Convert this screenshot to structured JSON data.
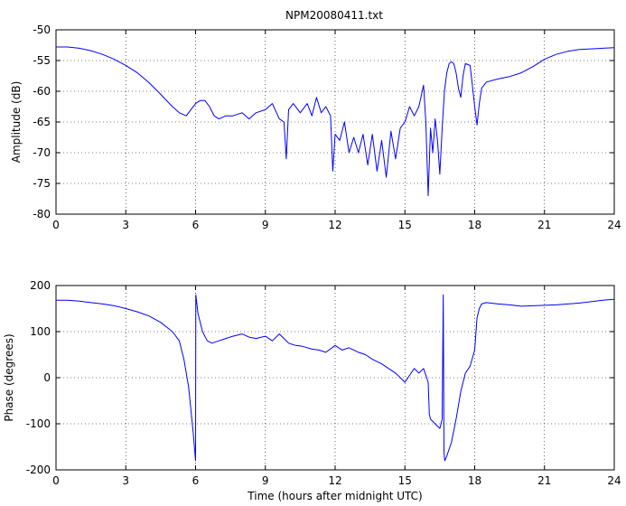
{
  "title": "NPM20080411.txt",
  "chart_data": [
    {
      "type": "line",
      "name": "amplitude",
      "ylabel": "Amplitude (dB)",
      "xlabel": "",
      "xlim": [
        0,
        24
      ],
      "ylim": [
        -80,
        -50
      ],
      "xticks": [
        0,
        3,
        6,
        9,
        12,
        15,
        18,
        21,
        24
      ],
      "yticks": [
        -50,
        -55,
        -60,
        -65,
        -70,
        -75,
        -80
      ],
      "grid": true,
      "color": "#0000ff",
      "x": [
        0,
        0.5,
        1,
        1.5,
        2,
        2.5,
        3,
        3.5,
        4,
        4.5,
        5,
        5.3,
        5.6,
        5.8,
        6.0,
        6.2,
        6.4,
        6.6,
        6.8,
        7.0,
        7.3,
        7.6,
        8.0,
        8.3,
        8.6,
        9.0,
        9.3,
        9.6,
        9.8,
        9.9,
        10.0,
        10.2,
        10.5,
        10.8,
        11.0,
        11.2,
        11.4,
        11.6,
        11.8,
        11.9,
        12.0,
        12.2,
        12.4,
        12.6,
        12.8,
        13.0,
        13.2,
        13.4,
        13.6,
        13.8,
        14.0,
        14.2,
        14.4,
        14.6,
        14.8,
        15.0,
        15.2,
        15.4,
        15.6,
        15.8,
        15.9,
        16.0,
        16.1,
        16.2,
        16.3,
        16.4,
        16.5,
        16.6,
        16.7,
        16.8,
        16.9,
        17.0,
        17.1,
        17.2,
        17.3,
        17.4,
        17.5,
        17.6,
        17.8,
        17.9,
        18.0,
        18.1,
        18.2,
        18.3,
        18.5,
        19.0,
        19.5,
        20.0,
        20.5,
        21.0,
        21.5,
        22.0,
        22.5,
        23.0,
        23.5,
        24.0
      ],
      "y": [
        -52.8,
        -52.8,
        -53.0,
        -53.4,
        -54.0,
        -54.8,
        -55.8,
        -57.0,
        -58.6,
        -60.5,
        -62.5,
        -63.5,
        -64.0,
        -63.0,
        -62.0,
        -61.5,
        -61.5,
        -62.5,
        -64.0,
        -64.5,
        -64.0,
        -64.0,
        -63.5,
        -64.5,
        -63.5,
        -63.0,
        -62.0,
        -64.5,
        -65.0,
        -71.0,
        -63.0,
        -62.0,
        -63.5,
        -62.0,
        -64.0,
        -61.0,
        -63.5,
        -62.5,
        -64.0,
        -73.0,
        -67.0,
        -68.0,
        -65.0,
        -70.0,
        -67.5,
        -70.0,
        -67.0,
        -72.0,
        -67.0,
        -73.0,
        -68.0,
        -74.0,
        -66.5,
        -71.0,
        -66.0,
        -65.0,
        -62.5,
        -64.0,
        -62.5,
        -59.0,
        -65.0,
        -77.0,
        -66.0,
        -70.0,
        -64.5,
        -68.0,
        -73.5,
        -66.0,
        -60.0,
        -57.0,
        -55.5,
        -55.2,
        -55.5,
        -57.0,
        -59.5,
        -61.0,
        -57.5,
        -55.5,
        -55.8,
        -59.0,
        -62.5,
        -65.5,
        -62.0,
        -59.5,
        -58.5,
        -58.0,
        -57.6,
        -57.0,
        -56.0,
        -54.8,
        -54.0,
        -53.5,
        -53.2,
        -53.1,
        -53.0,
        -52.9
      ]
    },
    {
      "type": "line",
      "name": "phase",
      "ylabel": "Phase (degrees)",
      "xlabel": "Time (hours after midnight UTC)",
      "xlim": [
        0,
        24
      ],
      "ylim": [
        -200,
        200
      ],
      "xticks": [
        0,
        3,
        6,
        9,
        12,
        15,
        18,
        21,
        24
      ],
      "yticks": [
        200,
        100,
        0,
        -100,
        -200
      ],
      "grid": true,
      "color": "#0000ff",
      "x": [
        0,
        0.5,
        1,
        1.5,
        2,
        2.5,
        3,
        3.5,
        4,
        4.5,
        5.0,
        5.3,
        5.5,
        5.7,
        5.9,
        6.0,
        6.01,
        6.1,
        6.3,
        6.5,
        6.7,
        7.0,
        7.3,
        7.6,
        8.0,
        8.3,
        8.6,
        9.0,
        9.3,
        9.6,
        9.8,
        10.0,
        10.3,
        10.6,
        11.0,
        11.3,
        11.6,
        12.0,
        12.3,
        12.6,
        13.0,
        13.3,
        13.6,
        14.0,
        14.3,
        14.6,
        14.8,
        15.0,
        15.2,
        15.4,
        15.6,
        15.8,
        16.0,
        16.05,
        16.1,
        16.3,
        16.5,
        16.6,
        16.65,
        16.68,
        16.7,
        16.72,
        16.8,
        17.0,
        17.2,
        17.4,
        17.6,
        17.8,
        18.0,
        18.1,
        18.2,
        18.3,
        18.5,
        19.0,
        19.5,
        20.0,
        20.5,
        21.0,
        21.5,
        22.0,
        22.5,
        23.0,
        23.5,
        24.0
      ],
      "y": [
        168,
        168,
        166,
        163,
        160,
        156,
        150,
        143,
        134,
        120,
        100,
        80,
        40,
        -20,
        -120,
        -180,
        180,
        140,
        100,
        80,
        75,
        80,
        85,
        90,
        95,
        88,
        85,
        90,
        80,
        95,
        85,
        75,
        70,
        68,
        62,
        60,
        55,
        70,
        60,
        65,
        55,
        50,
        40,
        30,
        20,
        10,
        0,
        -10,
        5,
        20,
        10,
        20,
        -10,
        -80,
        -90,
        -100,
        -110,
        -90,
        180,
        -160,
        -175,
        -180,
        -170,
        -140,
        -90,
        -30,
        10,
        25,
        60,
        130,
        150,
        160,
        163,
        160,
        158,
        155,
        156,
        157,
        158,
        160,
        162,
        165,
        168,
        170
      ]
    }
  ]
}
